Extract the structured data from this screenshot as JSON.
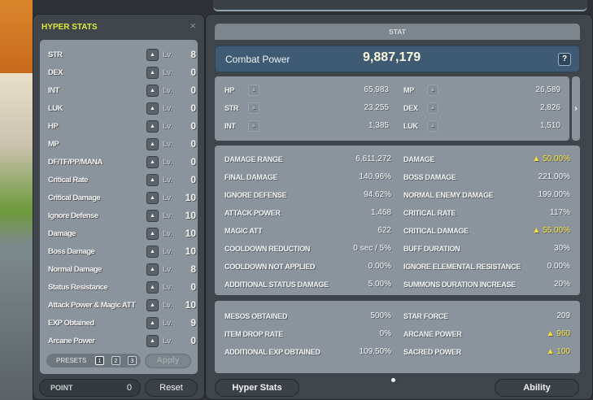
{
  "hyper_stats": {
    "title": "HYPER STATS",
    "close_icon": "×",
    "lv_label": "Lv.",
    "rows": [
      {
        "name": "STR",
        "level": "8"
      },
      {
        "name": "DEX",
        "level": "0"
      },
      {
        "name": "INT",
        "level": "0"
      },
      {
        "name": "LUK",
        "level": "0"
      },
      {
        "name": "HP",
        "level": "0"
      },
      {
        "name": "MP",
        "level": "0"
      },
      {
        "name": "DF/TF/PP/MANA",
        "level": "0"
      },
      {
        "name": "Critical Rate",
        "level": "0"
      },
      {
        "name": "Critical Damage",
        "level": "10"
      },
      {
        "name": "Ignore Defense",
        "level": "10"
      },
      {
        "name": "Damage",
        "level": "10"
      },
      {
        "name": "Boss Damage",
        "level": "10"
      },
      {
        "name": "Normal Damage",
        "level": "8"
      },
      {
        "name": "Status Resistance",
        "level": "0"
      },
      {
        "name": "Attack Power & Magic ATT",
        "level": "10"
      },
      {
        "name": "EXP Obtained",
        "level": "9"
      },
      {
        "name": "Arcane Power",
        "level": "0"
      }
    ],
    "presets_label": "PRESETS",
    "presets": [
      "1",
      "2",
      "3"
    ],
    "active_preset": "1",
    "apply_label": "Apply",
    "point_label": "POINT",
    "point_value": "0",
    "reset_label": "Reset"
  },
  "stat": {
    "tab": "STAT",
    "combat_power_label": "Combat Power",
    "combat_power": "9,887,179",
    "help_label": "?",
    "basic": [
      {
        "name": "HP",
        "value": "65,983"
      },
      {
        "name": "MP",
        "value": "26,589"
      },
      {
        "name": "STR",
        "value": "23,255"
      },
      {
        "name": "DEX",
        "value": "2,826"
      },
      {
        "name": "INT",
        "value": "1,385"
      },
      {
        "name": "LUK",
        "value": "1,510"
      }
    ],
    "expand_icon": "›",
    "detail": [
      {
        "name": "DAMAGE RANGE",
        "value": "6,611,272"
      },
      {
        "name": "DAMAGE",
        "value": "▲ 50.00%",
        "highlight": true
      },
      {
        "name": "FINAL DAMAGE",
        "value": "140.96%"
      },
      {
        "name": "BOSS DAMAGE",
        "value": "221.00%"
      },
      {
        "name": "IGNORE DEFENSE",
        "value": "94.62%"
      },
      {
        "name": "NORMAL ENEMY DAMAGE",
        "value": "199.00%"
      },
      {
        "name": "ATTACK POWER",
        "value": "1,468"
      },
      {
        "name": "CRITICAL RATE",
        "value": "117%"
      },
      {
        "name": "MAGIC ATT",
        "value": "622"
      },
      {
        "name": "CRITICAL DAMAGE",
        "value": "▲ 55.00%",
        "highlight": true
      },
      {
        "name": "COOLDOWN REDUCTION",
        "value": "0 sec / 5%"
      },
      {
        "name": "BUFF DURATION",
        "value": "30%"
      },
      {
        "name": "COOLDOWN NOT APPLIED",
        "value": "0.00%"
      },
      {
        "name": "IGNORE ELEMENTAL RESISTANCE",
        "value": "0.00%"
      },
      {
        "name": "ADDITIONAL STATUS DAMAGE",
        "value": "5.00%"
      },
      {
        "name": "SUMMONS DURATION INCREASE",
        "value": "20%"
      }
    ],
    "extra": [
      {
        "name": "MESOS OBTAINED",
        "value": "500%"
      },
      {
        "name": "STAR FORCE",
        "value": "209"
      },
      {
        "name": "ITEM DROP RATE",
        "value": "0%"
      },
      {
        "name": "ARCANE POWER",
        "value": "▲ 960",
        "highlight": true
      },
      {
        "name": "ADDITIONAL EXP OBTAINED",
        "value": "109.50%"
      },
      {
        "name": "SACRED POWER",
        "value": "▲ 100",
        "highlight": true
      }
    ],
    "page": 1,
    "pages": 2,
    "hyper_stats_button": "Hyper Stats",
    "ability_button": "Ability"
  },
  "colors": {
    "title_yellow": "#d8ec3c",
    "highlight_yellow": "#f4e23a",
    "combat_bar": "#3e5b73"
  }
}
